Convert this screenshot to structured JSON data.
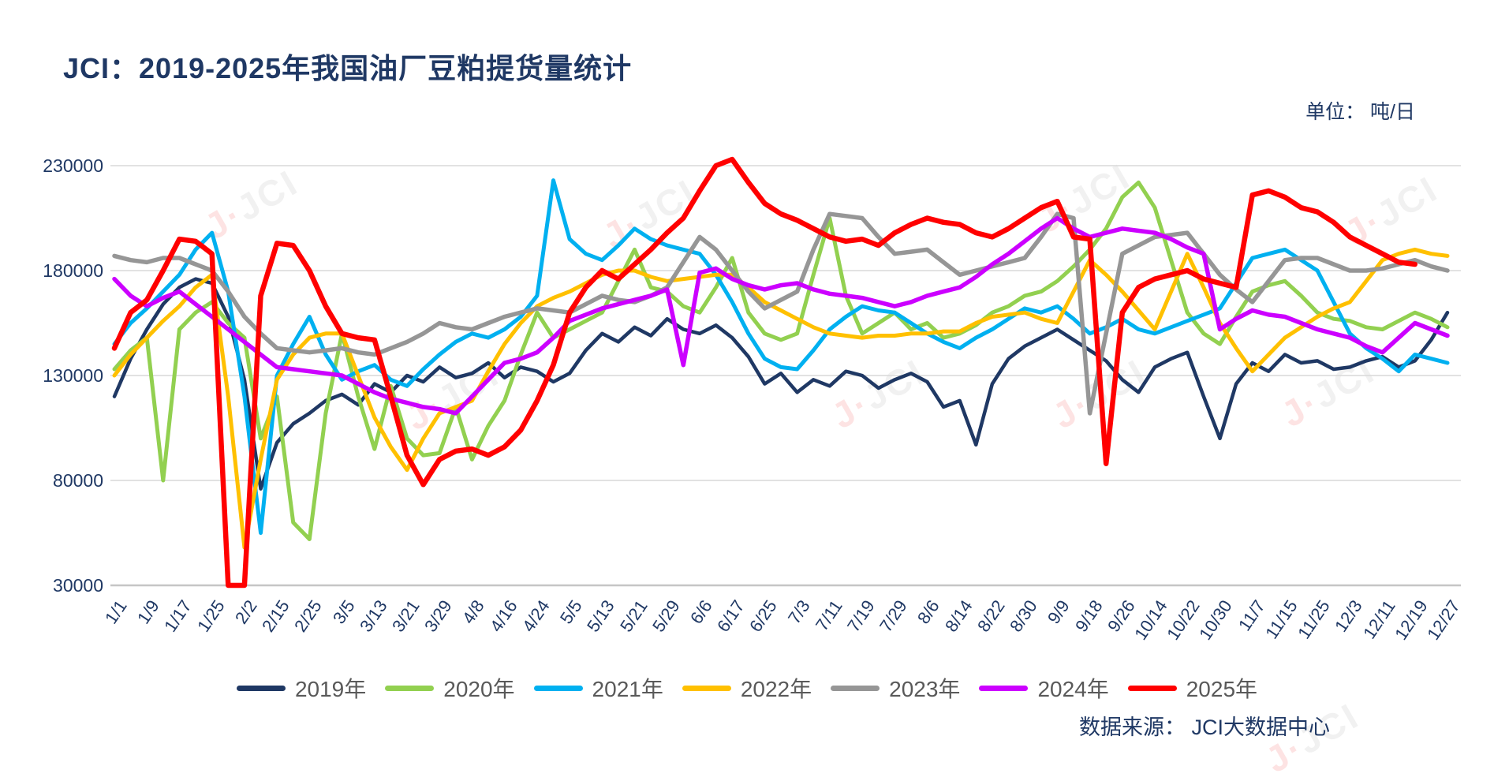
{
  "title": "JCI：2019-2025年我国油厂豆粕提货量统计",
  "unit_label": "单位： 吨/日",
  "source_label": "数据来源： JCI大数据中心",
  "watermark": "JCI",
  "colors": {
    "title_text": "#1f3864",
    "axis_text": "#1f3864",
    "legend_text": "#595959",
    "gridline": "#d9d9d9",
    "axis_line": "#c6c6c6"
  },
  "chart_data": {
    "type": "line",
    "title": "JCI：2019-2025年我国油厂豆粕提货量统计",
    "xlabel": "",
    "ylabel": "吨/日",
    "ylim": [
      30000,
      230000
    ],
    "yticks": [
      30000,
      80000,
      130000,
      180000,
      230000
    ],
    "grid": "horizontal",
    "legend_position": "bottom",
    "x_tick_labels": [
      "1/1",
      "1/9",
      "1/17",
      "1/25",
      "2/2",
      "2/15",
      "2/25",
      "3/5",
      "3/13",
      "3/21",
      "3/29",
      "4/8",
      "4/16",
      "4/24",
      "5/5",
      "5/13",
      "5/21",
      "5/29",
      "6/6",
      "6/17",
      "6/25",
      "7/3",
      "7/11",
      "7/19",
      "7/29",
      "8/6",
      "8/14",
      "8/22",
      "8/30",
      "9/9",
      "9/18",
      "9/26",
      "10/14",
      "10/22",
      "10/30",
      "11/7",
      "11/15",
      "11/25",
      "12/3",
      "12/11",
      "12/19",
      "12/27"
    ],
    "points_per_tick": 2,
    "series": [
      {
        "name": "2019年",
        "color": "#1f3864",
        "values": [
          120000,
          138000,
          152000,
          164000,
          172000,
          176000,
          174000,
          158000,
          128000,
          76000,
          98000,
          107000,
          112000,
          118000,
          121000,
          116000,
          126000,
          122000,
          130000,
          127000,
          134000,
          129000,
          131000,
          136000,
          129000,
          134000,
          132000,
          127000,
          131000,
          142000,
          150000,
          146000,
          153000,
          149000,
          157000,
          152000,
          150000,
          154000,
          148000,
          139000,
          126000,
          131000,
          122000,
          128000,
          125000,
          132000,
          130000,
          124000,
          128000,
          131000,
          127000,
          115000,
          118000,
          97000,
          126000,
          138000,
          144000,
          148000,
          152000,
          147000,
          142000,
          137000,
          128000,
          122000,
          134000,
          138000,
          141000,
          120000,
          100000,
          126000,
          136000,
          132000,
          140000,
          136000,
          137000,
          133000,
          134000,
          137000,
          139000,
          134000,
          137000,
          147000,
          160000
        ]
      },
      {
        "name": "2020年",
        "color": "#92d050",
        "values": [
          133000,
          142000,
          148000,
          80000,
          152000,
          160000,
          165000,
          155000,
          148000,
          100000,
          120000,
          60000,
          52000,
          112000,
          150000,
          120000,
          95000,
          125000,
          100000,
          92000,
          93000,
          115000,
          90000,
          106000,
          118000,
          140000,
          160000,
          148000,
          152000,
          156000,
          160000,
          175000,
          190000,
          172000,
          170000,
          163000,
          160000,
          172000,
          186000,
          160000,
          150000,
          147000,
          150000,
          178000,
          205000,
          168000,
          150000,
          155000,
          160000,
          152000,
          155000,
          148000,
          150000,
          154000,
          160000,
          163000,
          168000,
          170000,
          175000,
          182000,
          190000,
          200000,
          215000,
          222000,
          210000,
          185000,
          160000,
          150000,
          145000,
          158000,
          170000,
          173000,
          175000,
          168000,
          160000,
          157000,
          156000,
          153000,
          152000,
          156000,
          160000,
          157000,
          153000
        ]
      },
      {
        "name": "2021年",
        "color": "#00b0f0",
        "values": [
          145000,
          155000,
          162000,
          170000,
          178000,
          190000,
          198000,
          170000,
          120000,
          55000,
          130000,
          145000,
          158000,
          140000,
          128000,
          132000,
          135000,
          128000,
          125000,
          133000,
          140000,
          146000,
          150000,
          148000,
          152000,
          158000,
          168000,
          223000,
          195000,
          188000,
          185000,
          192000,
          200000,
          195000,
          192000,
          190000,
          188000,
          178000,
          165000,
          150000,
          138000,
          134000,
          133000,
          142000,
          152000,
          158000,
          163000,
          161000,
          160000,
          155000,
          150000,
          146000,
          143000,
          148000,
          152000,
          157000,
          162000,
          160000,
          163000,
          157000,
          150000,
          153000,
          157000,
          152000,
          150000,
          153000,
          156000,
          159000,
          162000,
          174000,
          186000,
          188000,
          190000,
          185000,
          180000,
          165000,
          150000,
          143000,
          138000,
          132000,
          140000,
          138000,
          136000
        ]
      },
      {
        "name": "2022年",
        "color": "#ffc000",
        "values": [
          130000,
          140000,
          148000,
          156000,
          163000,
          172000,
          178000,
          120000,
          48000,
          90000,
          128000,
          140000,
          148000,
          150000,
          150000,
          130000,
          110000,
          96000,
          85000,
          100000,
          112000,
          115000,
          118000,
          132000,
          145000,
          155000,
          163000,
          167000,
          170000,
          174000,
          178000,
          180000,
          180000,
          177000,
          175000,
          176000,
          177000,
          178000,
          178000,
          172000,
          165000,
          161000,
          157000,
          153000,
          150000,
          149000,
          148000,
          149000,
          149000,
          150000,
          150000,
          151000,
          151000,
          155000,
          158000,
          159000,
          160000,
          157000,
          155000,
          170000,
          185000,
          178000,
          170000,
          161000,
          152000,
          170000,
          188000,
          172000,
          155000,
          143000,
          132000,
          140000,
          148000,
          153000,
          158000,
          162000,
          165000,
          175000,
          185000,
          188000,
          190000,
          188000,
          187000
        ]
      },
      {
        "name": "2023年",
        "color": "#969696",
        "values": [
          187000,
          185000,
          184000,
          186000,
          186000,
          183000,
          180000,
          170000,
          158000,
          150000,
          143000,
          142000,
          141000,
          142000,
          143000,
          141000,
          140000,
          143000,
          146000,
          150000,
          155000,
          153000,
          152000,
          155000,
          158000,
          160000,
          162000,
          161000,
          160000,
          164000,
          168000,
          166000,
          165000,
          168000,
          172000,
          184000,
          196000,
          190000,
          180000,
          170000,
          162000,
          166000,
          170000,
          190000,
          207000,
          206000,
          205000,
          196000,
          188000,
          189000,
          190000,
          184000,
          178000,
          180000,
          182000,
          184000,
          186000,
          196000,
          207000,
          205000,
          112000,
          150000,
          188000,
          192000,
          196000,
          197000,
          198000,
          188000,
          178000,
          171000,
          165000,
          175000,
          185000,
          186000,
          186000,
          183000,
          180000,
          180000,
          181000,
          183000,
          185000,
          182000,
          180000
        ]
      },
      {
        "name": "2024年",
        "color": "#cc00ff",
        "values": [
          176000,
          168000,
          163000,
          167000,
          170000,
          164000,
          158000,
          152000,
          146000,
          140000,
          134000,
          133000,
          132000,
          131000,
          130000,
          126000,
          122000,
          119000,
          117000,
          115000,
          114000,
          112000,
          120000,
          128000,
          136000,
          138000,
          141000,
          148000,
          156000,
          159000,
          162000,
          164000,
          166000,
          168000,
          171000,
          135000,
          179000,
          181000,
          176000,
          173000,
          171000,
          173000,
          174000,
          171000,
          169000,
          168000,
          167000,
          165000,
          163000,
          165000,
          168000,
          170000,
          172000,
          177000,
          183000,
          188000,
          194000,
          200000,
          205000,
          200000,
          196000,
          198000,
          200000,
          199000,
          198000,
          195000,
          191000,
          188000,
          152000,
          157000,
          161000,
          159000,
          158000,
          155000,
          152000,
          150000,
          148000,
          144000,
          141000,
          148000,
          155000,
          152000,
          149000
        ]
      },
      {
        "name": "2025年",
        "color": "#ff0000",
        "values": [
          143000,
          160000,
          166000,
          180000,
          195000,
          194000,
          188000,
          30000,
          30000,
          168000,
          193000,
          192000,
          180000,
          163000,
          150000,
          148000,
          147000,
          120000,
          92000,
          78000,
          90000,
          94000,
          95000,
          92000,
          96000,
          104000,
          118000,
          135000,
          160000,
          172000,
          180000,
          176000,
          183000,
          190000,
          198000,
          205000,
          218000,
          230000,
          233000,
          222000,
          212000,
          207000,
          204000,
          200000,
          196000,
          194000,
          195000,
          192000,
          198000,
          202000,
          205000,
          203000,
          202000,
          198000,
          196000,
          200000,
          205000,
          210000,
          213000,
          196000,
          195000,
          88000,
          160000,
          172000,
          176000,
          178000,
          180000,
          176000,
          174000,
          172000,
          216000,
          218000,
          215000,
          210000,
          208000,
          203000,
          196000,
          192000,
          188000,
          184000,
          183000,
          null,
          null
        ]
      }
    ]
  }
}
